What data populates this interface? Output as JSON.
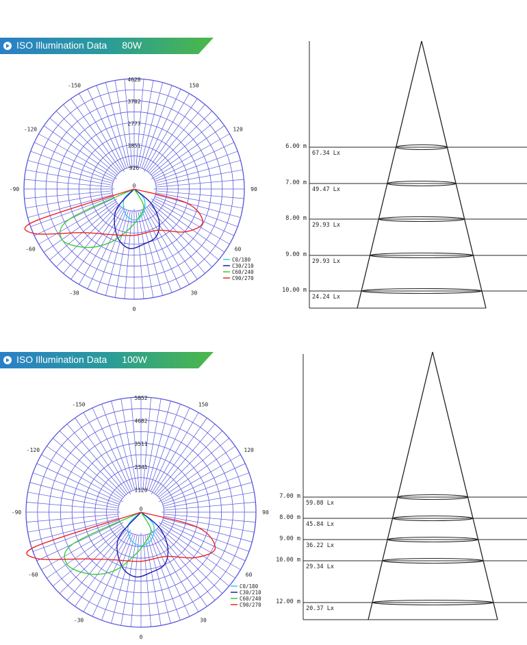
{
  "sections": [
    {
      "banner": {
        "title": "ISO Illumination  Data",
        "power": "80W"
      },
      "chart_data": [
        {
          "type": "polar",
          "radial_ticks": [
            "926",
            "1851",
            "2777",
            "3702",
            "4628"
          ],
          "angle_labels": [
            "-150",
            "150",
            "-120",
            "120",
            "-90",
            "90",
            "-60",
            "60",
            "-30",
            "30",
            "0"
          ],
          "center_label": "0",
          "legend": [
            "C0/180",
            "C30/210",
            "C60/240",
            "C90/270"
          ],
          "colors": [
            "#33ccee",
            "#1a1aa8",
            "#33cc33",
            "#ee2222"
          ],
          "series": [
            {
              "name": "C0/180",
              "points": [
                [
                  -90,
                  0
                ],
                [
                  -45,
                  600
                ],
                [
                  -20,
                  1100
                ],
                [
                  0,
                  1300
                ],
                [
                  20,
                  1100
                ],
                [
                  45,
                  600
                ],
                [
                  90,
                  0
                ]
              ]
            },
            {
              "name": "C30/210",
              "points": [
                [
                  -90,
                  0
                ],
                [
                  -40,
                  1200
                ],
                [
                  -20,
                  2100
                ],
                [
                  -5,
                  2500
                ],
                [
                  10,
                  2350
                ],
                [
                  25,
                  2200
                ],
                [
                  38,
                  1700
                ],
                [
                  50,
                  900
                ],
                [
                  90,
                  0
                ]
              ]
            },
            {
              "name": "C60/240",
              "points": [
                [
                  -90,
                  0
                ],
                [
                  -65,
                  3000
                ],
                [
                  -55,
                  3700
                ],
                [
                  -40,
                  3200
                ],
                [
                  -25,
                  2500
                ],
                [
                  -10,
                  1800
                ],
                [
                  10,
                  1200
                ],
                [
                  30,
                  800
                ],
                [
                  90,
                  0
                ]
              ]
            },
            {
              "name": "C90/270",
              "points": [
                [
                  -90,
                  0
                ],
                [
                  -72,
                  4400
                ],
                [
                  -66,
                  4600
                ],
                [
                  -50,
                  2850
                ],
                [
                  -30,
                  2200
                ],
                [
                  0,
                  1950
                ],
                [
                  30,
                  2000
                ],
                [
                  50,
                  2800
                ],
                [
                  64,
                  3200
                ],
                [
                  75,
                  2300
                ],
                [
                  90,
                  0
                ]
              ]
            }
          ]
        },
        {
          "type": "illuminance-cone",
          "rows": [
            {
              "height": "6.00 m",
              "lux": "67.34 Lx"
            },
            {
              "height": "7.00 m",
              "lux": "49.47 Lx"
            },
            {
              "height": "8.00 m",
              "lux": "29.93 Lx"
            },
            {
              "height": "9.00 m",
              "lux": "29.93 Lx"
            },
            {
              "height": "10.00 m",
              "lux": "24.24 Lx"
            }
          ]
        }
      ]
    },
    {
      "banner": {
        "title": "ISO Illumination  Data",
        "power": "100W"
      },
      "chart_data": [
        {
          "type": "polar",
          "radial_ticks": [
            "1120",
            "2341",
            "3511",
            "4682",
            "5852"
          ],
          "angle_labels": [
            "-150",
            "150",
            "-120",
            "120",
            "-90",
            "90",
            "-60",
            "60",
            "-30",
            "30",
            "0"
          ],
          "center_label": "0",
          "legend": [
            "C0/180",
            "C30/210",
            "C60/240",
            "C90/270"
          ],
          "colors": [
            "#33ccee",
            "#1a1aa8",
            "#33cc33",
            "#ee2222"
          ],
          "series": [
            {
              "name": "C0/180",
              "points": [
                [
                  -90,
                  0
                ],
                [
                  -45,
                  900
                ],
                [
                  -20,
                  1500
                ],
                [
                  0,
                  1700
                ],
                [
                  20,
                  1500
                ],
                [
                  45,
                  900
                ],
                [
                  90,
                  0
                ]
              ]
            },
            {
              "name": "C30/210",
              "points": [
                [
                  -90,
                  0
                ],
                [
                  -40,
                  1800
                ],
                [
                  -20,
                  2900
                ],
                [
                  -5,
                  3300
                ],
                [
                  10,
                  3100
                ],
                [
                  25,
                  2900
                ],
                [
                  38,
                  2200
                ],
                [
                  50,
                  1200
                ],
                [
                  90,
                  0
                ]
              ]
            },
            {
              "name": "C60/240",
              "points": [
                [
                  -90,
                  0
                ],
                [
                  -65,
                  3800
                ],
                [
                  -55,
                  4600
                ],
                [
                  -40,
                  4100
                ],
                [
                  -25,
                  3300
                ],
                [
                  -10,
                  2300
                ],
                [
                  10,
                  1500
                ],
                [
                  30,
                  1000
                ],
                [
                  90,
                  0
                ]
              ]
            },
            {
              "name": "C90/270",
              "points": [
                [
                  -90,
                  0
                ],
                [
                  -72,
                  5600
                ],
                [
                  -66,
                  5800
                ],
                [
                  -50,
                  3700
                ],
                [
                  -30,
                  2800
                ],
                [
                  0,
                  2500
                ],
                [
                  30,
                  2600
                ],
                [
                  50,
                  3600
                ],
                [
                  64,
                  4200
                ],
                [
                  75,
                  3000
                ],
                [
                  90,
                  0
                ]
              ]
            }
          ]
        },
        {
          "type": "illuminance-cone",
          "rows": [
            {
              "height": "7.00 m",
              "lux": "59.88 Lx"
            },
            {
              "height": "8.00 m",
              "lux": "45.84 Lx"
            },
            {
              "height": "9.00 m",
              "lux": "36.22 Lx"
            },
            {
              "height": "10.00 m",
              "lux": "29.34 Lx"
            },
            {
              "height": "12.00 m",
              "lux": "20.37 Lx"
            }
          ]
        }
      ]
    }
  ]
}
